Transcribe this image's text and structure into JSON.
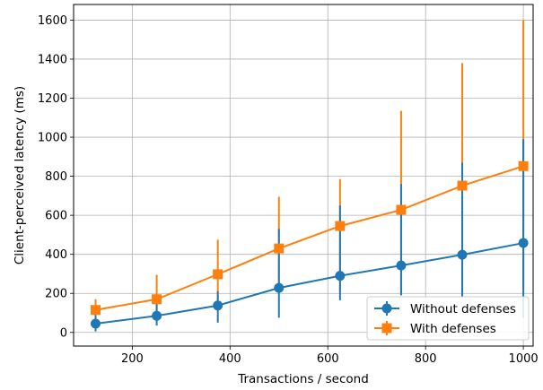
{
  "chart_data": {
    "type": "line",
    "xlabel": "Transactions / second",
    "ylabel": "Client-perceived latency (ms)",
    "xlim": [
      80,
      1020
    ],
    "ylim": [
      -70,
      1680
    ],
    "xticks": [
      200,
      400,
      600,
      800,
      1000
    ],
    "yticks": [
      0,
      200,
      400,
      600,
      800,
      1000,
      1200,
      1400,
      1600
    ],
    "grid": true,
    "legend_position": "lower-right",
    "x": [
      125,
      250,
      375,
      500,
      625,
      750,
      875,
      1000
    ],
    "series": [
      {
        "name": "Without defenses",
        "color": "#1f77b4",
        "marker": "circle",
        "values": [
          45,
          85,
          138,
          228,
          290,
          343,
          398,
          458
        ],
        "err_low": [
          5,
          35,
          50,
          75,
          165,
          190,
          185,
          75
        ],
        "err_high": [
          90,
          150,
          210,
          530,
          650,
          760,
          870,
          990
        ]
      },
      {
        "name": "With defenses",
        "color": "#ff7f0e",
        "marker": "square",
        "values": [
          115,
          170,
          298,
          430,
          545,
          628,
          752,
          852
        ],
        "err_low": [
          60,
          95,
          165,
          215,
          215,
          190,
          180,
          220
        ],
        "err_high": [
          170,
          295,
          475,
          695,
          785,
          1135,
          1380,
          1600
        ]
      }
    ]
  }
}
